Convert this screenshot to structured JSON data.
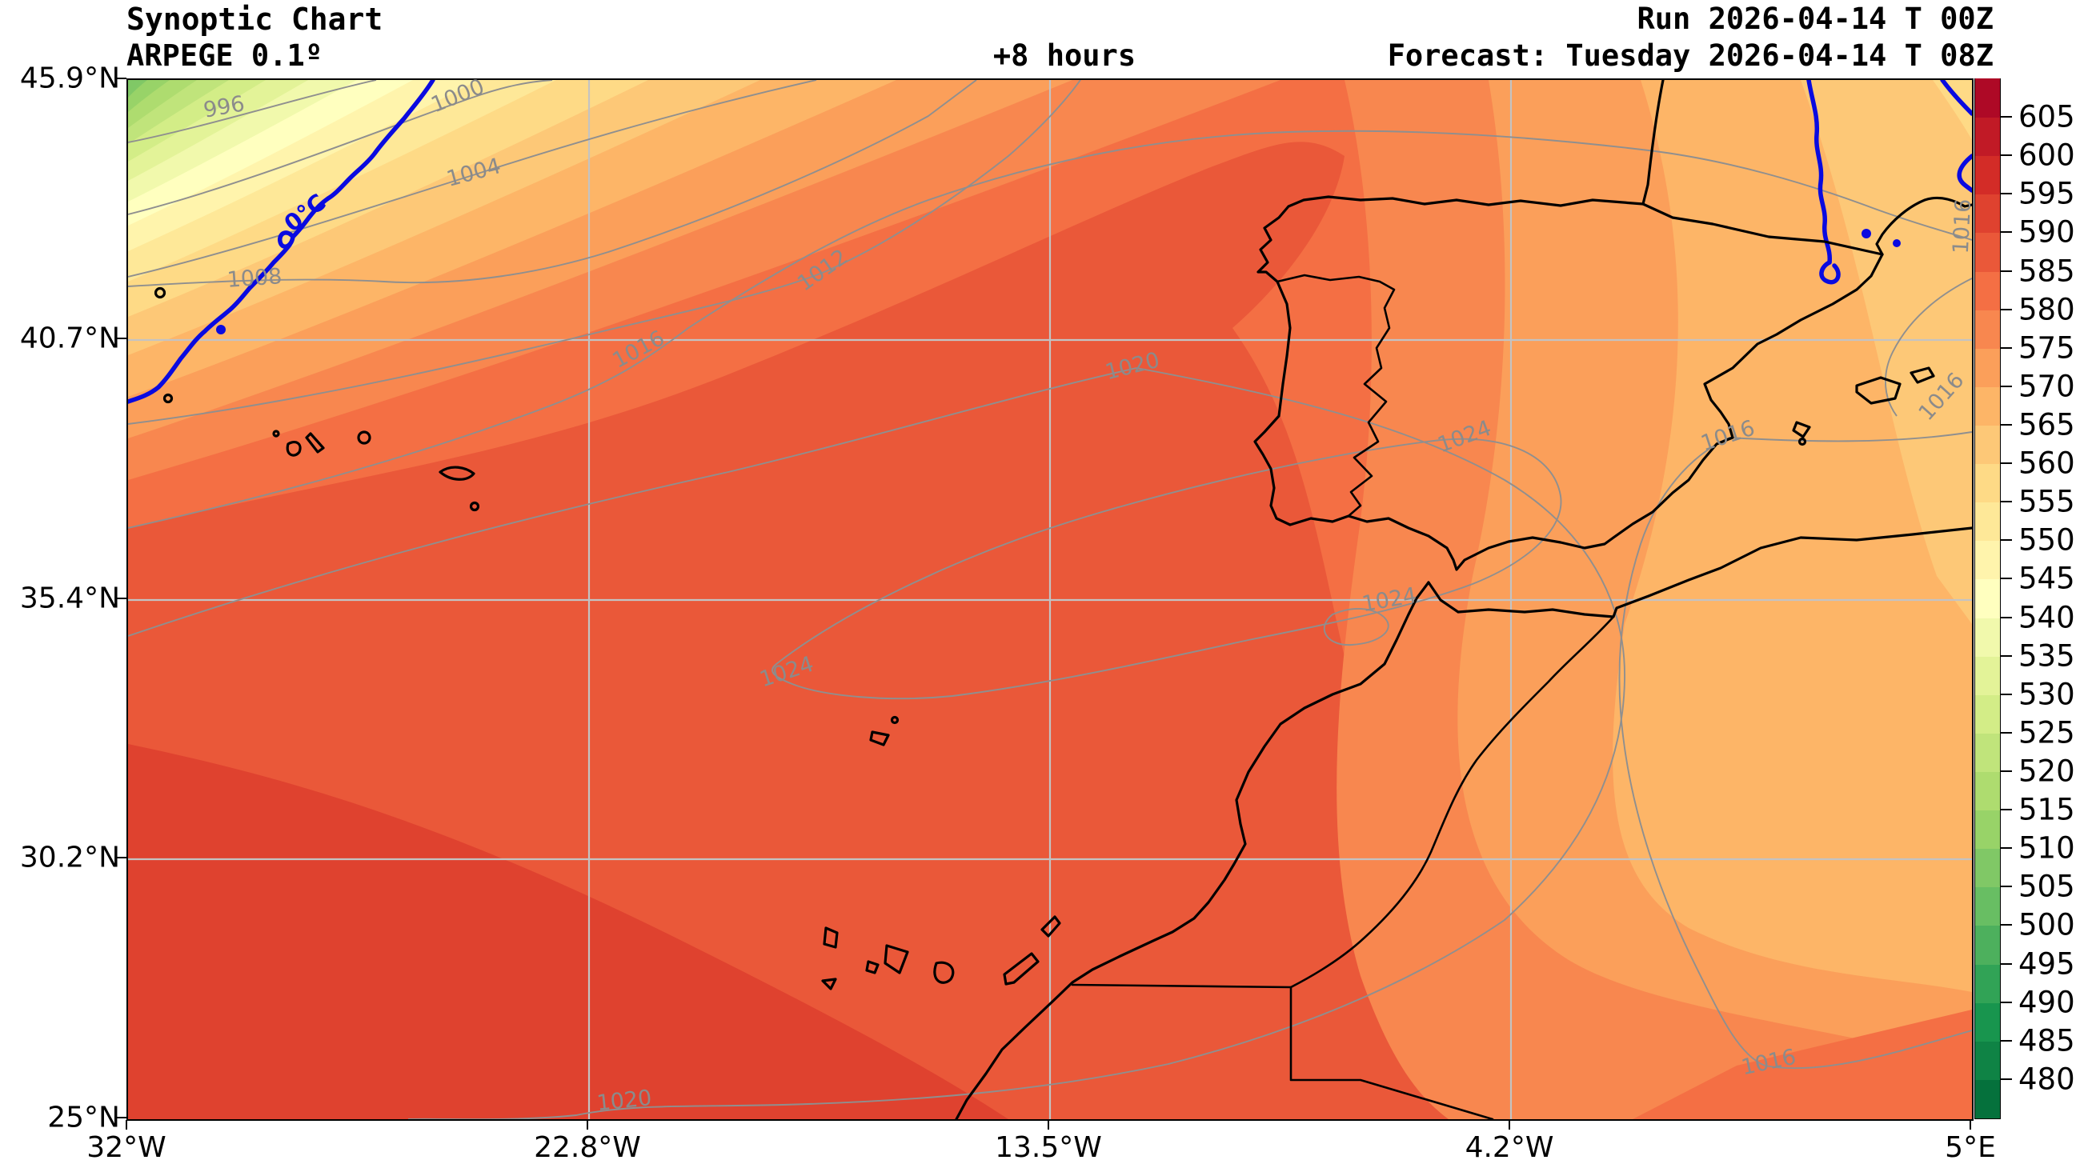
{
  "header": {
    "title": "Synoptic Chart",
    "subtitle": "ARPEGE 0.1º",
    "lead_time": "+8 hours",
    "run_line": "Run 2026-04-14 T 00Z",
    "forecast_line": "Forecast: Tuesday 2026-04-14 T 08Z"
  },
  "chart_data": {
    "type": "heatmap",
    "title": "Synoptic Chart ARPEGE 0.1º +8 hours",
    "subtitle": "Run 2026-04-14 T 00Z / Forecast: Tuesday 2026-04-14 T 08Z",
    "field": "geopotential height shaded (dam), MSLP isobars (hPa), 0°C isotherm",
    "lon_range_deg": [
      -32,
      5
    ],
    "lat_range_deg": [
      25,
      45.9
    ],
    "x_ticks": [
      "32°W",
      "22.8°W",
      "13.5°W",
      "4.2°W",
      "5°E"
    ],
    "y_ticks": [
      "45.9°N",
      "40.7°N",
      "35.4°N",
      "30.2°N",
      "25°N"
    ],
    "grid": {
      "on": true,
      "color": "#c3c3c3"
    },
    "colorbar": {
      "position": "right",
      "value_min": 475,
      "value_max": 610,
      "band_size": 5,
      "tick_values": [
        480,
        485,
        490,
        495,
        500,
        505,
        510,
        515,
        520,
        525,
        530,
        535,
        540,
        545,
        550,
        555,
        560,
        565,
        570,
        575,
        580,
        585,
        590,
        595,
        600,
        605
      ],
      "colors_bottom_to_top": [
        "#05713c",
        "#0f8345",
        "#18954e",
        "#31a356",
        "#4db05d",
        "#68be63",
        "#80c866",
        "#98d368",
        "#aedc6f",
        "#c0e47b",
        "#d3ed87",
        "#e3f398",
        "#f1f9ac",
        "#ffffbf",
        "#fff4ac",
        "#fee898",
        "#feda86",
        "#fdc877",
        "#fdb567",
        "#fb9f5a",
        "#f8874f",
        "#f46f44",
        "#ea5839",
        "#df422f",
        "#d32c27",
        "#c11a26",
        "#ae0926"
      ]
    },
    "isobars": {
      "color": "#8f8f8f",
      "labels": [
        {
          "text": "996",
          "x": 122,
          "y": 36,
          "rot": -10
        },
        {
          "text": "1000",
          "x": 414,
          "y": 22,
          "rot": -22
        },
        {
          "text": "1004",
          "x": 434,
          "y": 118,
          "rot": -15
        },
        {
          "text": "1008",
          "x": 160,
          "y": 250,
          "rot": -4
        },
        {
          "text": "1012",
          "x": 870,
          "y": 240,
          "rot": -35
        },
        {
          "text": "1016",
          "x": 640,
          "y": 339,
          "rot": -28
        },
        {
          "text": "1020",
          "x": 1257,
          "y": 360,
          "rot": -14
        },
        {
          "text": "1024",
          "x": 825,
          "y": 742,
          "rot": -18
        },
        {
          "text": "1024",
          "x": 1672,
          "y": 448,
          "rot": -20
        },
        {
          "text": "1024",
          "x": 1578,
          "y": 652,
          "rot": -10
        },
        {
          "text": "1016",
          "x": 2001,
          "y": 447,
          "rot": -18
        },
        {
          "text": "1016",
          "x": 2294,
          "y": 185,
          "rot": -87
        },
        {
          "text": "1016",
          "x": 2268,
          "y": 398,
          "rot": -48
        },
        {
          "text": "1020",
          "x": 622,
          "y": 1278,
          "rot": -6
        },
        {
          "text": "1016",
          "x": 2052,
          "y": 1230,
          "rot": -12
        }
      ]
    },
    "isotherm_zero": {
      "color": "#0a0ae0",
      "label": "0°C",
      "label_x": 223,
      "label_y": 168,
      "label_rot": -38
    },
    "coastline_color": "#000000"
  }
}
